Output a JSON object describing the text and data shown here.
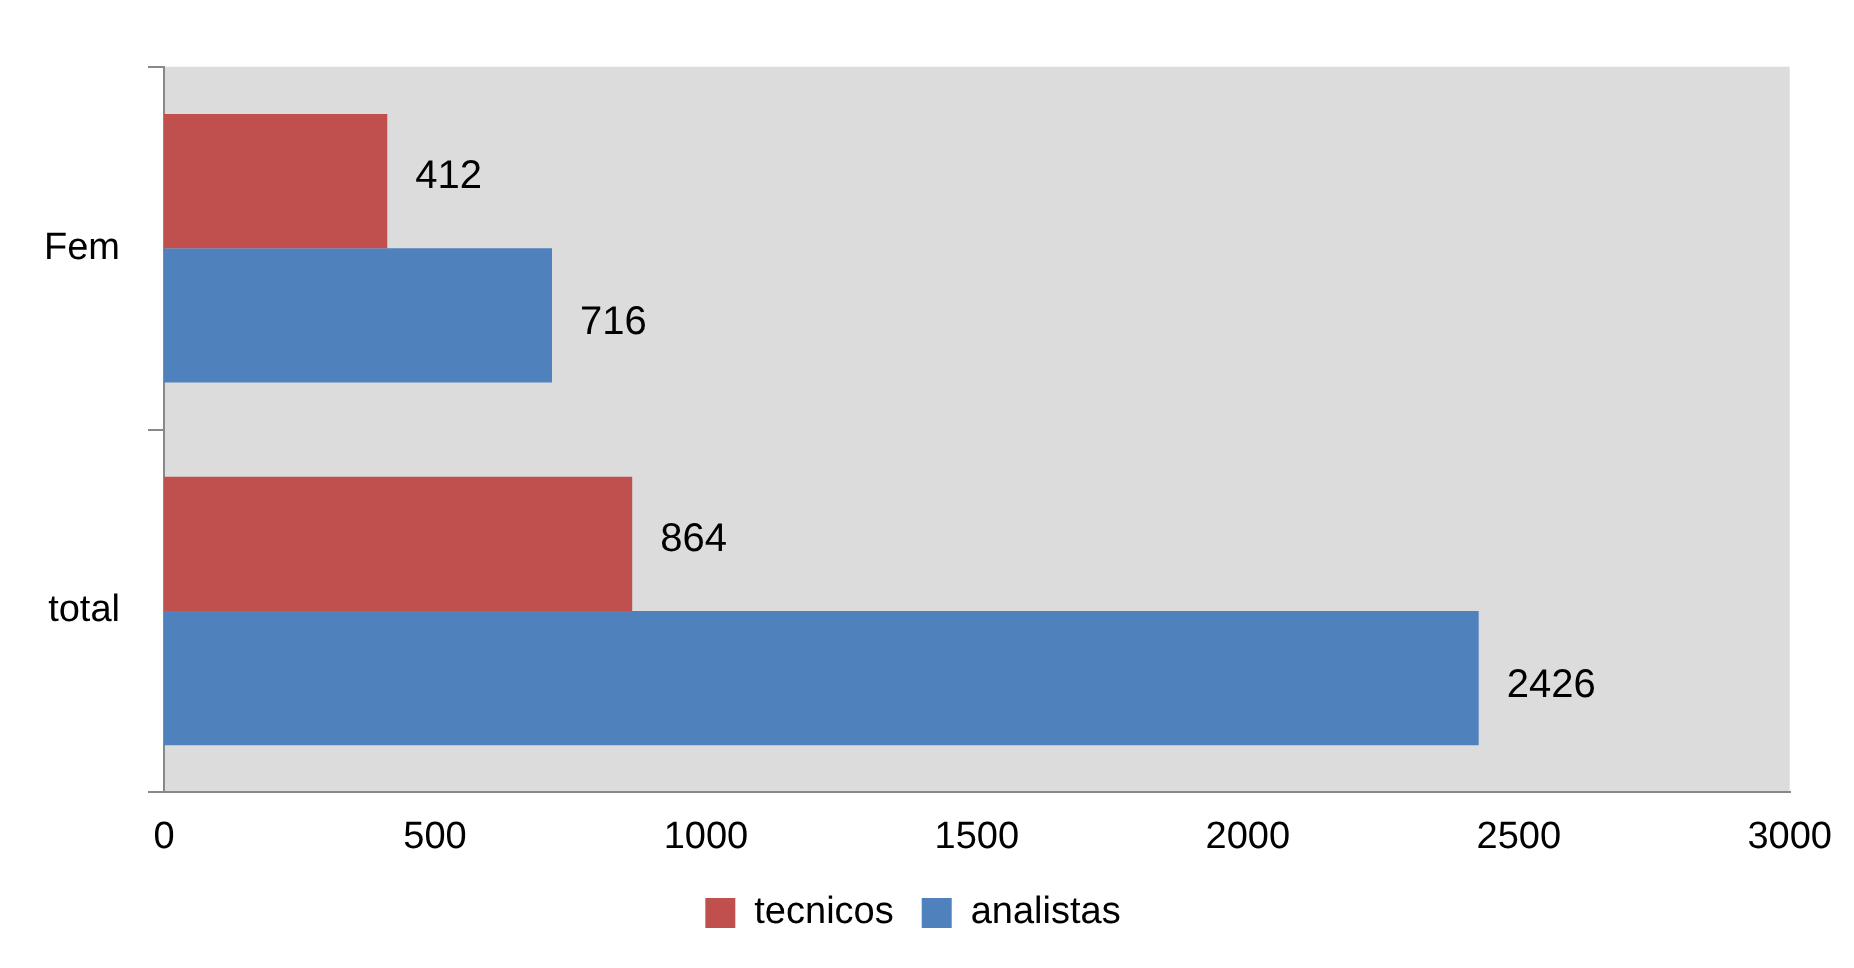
{
  "chart_data": {
    "type": "bar",
    "orientation": "horizontal",
    "categories": [
      "Fem",
      "total"
    ],
    "series": [
      {
        "name": "tecnicos",
        "color": "#c0504d",
        "values": [
          412,
          864
        ]
      },
      {
        "name": "analistas",
        "color": "#4f81bd",
        "values": [
          716,
          2426
        ]
      }
    ],
    "xlim": [
      0,
      3000
    ],
    "xticks": [
      0,
      500,
      1000,
      1500,
      2000,
      2500,
      3000
    ],
    "grid": false,
    "legend": "bottom",
    "data_labels": true
  }
}
